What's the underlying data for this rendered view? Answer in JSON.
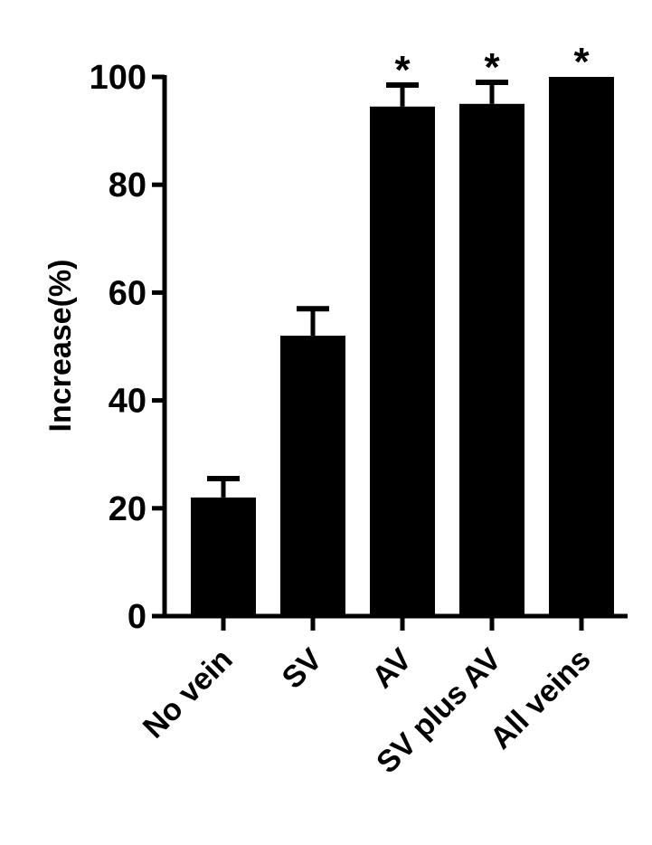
{
  "chart_data": {
    "type": "bar",
    "title": "",
    "xlabel": "",
    "ylabel": "Increase(%)",
    "ylim": [
      0,
      100
    ],
    "yticks": [
      0,
      20,
      40,
      60,
      80,
      100
    ],
    "categories": [
      "No vein",
      "SV",
      "AV",
      "SV plus AV",
      "All veins"
    ],
    "values": [
      22,
      52,
      94.5,
      95,
      100
    ],
    "error_upper": [
      25.5,
      57,
      98.5,
      99,
      100
    ],
    "annotations": [
      "",
      "",
      "*",
      "*",
      "*"
    ],
    "bar_color": "#000000",
    "grid": false
  }
}
